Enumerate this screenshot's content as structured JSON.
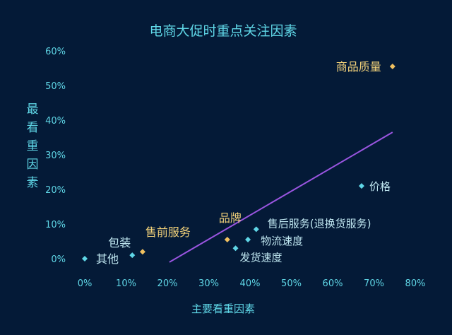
{
  "chart_data": {
    "type": "scatter",
    "title": "电商大促时重点关注因素",
    "xlabel": "主要看重因素",
    "ylabel": "最看重因素",
    "xlim": [
      0,
      80
    ],
    "ylim": [
      0,
      60
    ],
    "x_ticks": [
      "0%",
      "10%",
      "20%",
      "30%",
      "40%",
      "50%",
      "60%",
      "70%",
      "80%"
    ],
    "y_ticks": [
      "0%",
      "10%",
      "20%",
      "30%",
      "40%",
      "50%",
      "60%"
    ],
    "colors": {
      "cyan": "#5fd6e6",
      "gold": "#f0c060",
      "trend": "#9a55e0"
    },
    "points": [
      {
        "label": "其他",
        "x": 0,
        "y": 0,
        "color": "cyan"
      },
      {
        "label": "包装",
        "x": 11.5,
        "y": 1,
        "color": "cyan"
      },
      {
        "label": "售前服务",
        "x": 14,
        "y": 2,
        "color": "gold"
      },
      {
        "label": "品牌",
        "x": 34.5,
        "y": 5.5,
        "color": "gold"
      },
      {
        "label": "发货速度",
        "x": 36.5,
        "y": 3,
        "color": "cyan"
      },
      {
        "label": "物流速度",
        "x": 39.5,
        "y": 5.5,
        "color": "cyan"
      },
      {
        "label": "售后服务(退换货服务)",
        "x": 41.5,
        "y": 8.5,
        "color": "cyan"
      },
      {
        "label": "价格",
        "x": 67,
        "y": 21,
        "color": "cyan"
      },
      {
        "label": "商品质量",
        "x": 74.5,
        "y": 55.5,
        "color": "gold"
      }
    ],
    "trendline": {
      "x": [
        20.5,
        74.5
      ],
      "y": [
        -1,
        36.5
      ]
    }
  }
}
